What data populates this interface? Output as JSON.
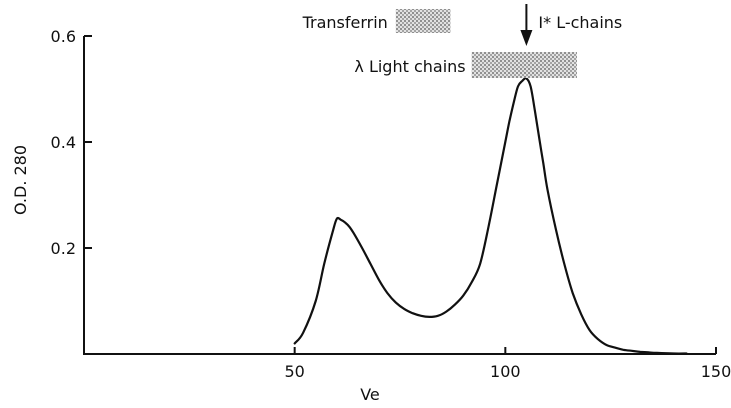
{
  "chart_data": {
    "type": "line",
    "title": "",
    "xlabel": "Ve",
    "ylabel": "O.D. 280",
    "xlim": [
      0,
      150
    ],
    "ylim": [
      0,
      0.6
    ],
    "xticks": [
      50,
      100,
      150
    ],
    "xtick_labels": [
      "50",
      "100",
      "150"
    ],
    "yticks": [
      0.2,
      0.4,
      0.6
    ],
    "ytick_labels": [
      "0.2",
      "0.4",
      "0.6"
    ],
    "grid": false,
    "colors": {
      "line": "#111111",
      "band": "#cfcfcf"
    },
    "series": [
      {
        "x": [
          50,
          52,
          55,
          57,
          59,
          60,
          61,
          62,
          63,
          64,
          66,
          68,
          70,
          72,
          74,
          76,
          78,
          80,
          82,
          84,
          86,
          88,
          90,
          92,
          94,
          96,
          98,
          100,
          101,
          102,
          103,
          104,
          105,
          106,
          107,
          108,
          109,
          110,
          112,
          114,
          116,
          118,
          120,
          122,
          124,
          126,
          128,
          130,
          132,
          134,
          136,
          140,
          143
        ],
        "y": [
          0.02,
          0.04,
          0.1,
          0.17,
          0.23,
          0.255,
          0.253,
          0.248,
          0.24,
          0.228,
          0.2,
          0.17,
          0.14,
          0.115,
          0.097,
          0.085,
          0.077,
          0.072,
          0.07,
          0.072,
          0.08,
          0.093,
          0.11,
          0.135,
          0.17,
          0.24,
          0.32,
          0.4,
          0.44,
          0.475,
          0.505,
          0.515,
          0.52,
          0.505,
          0.46,
          0.41,
          0.36,
          0.31,
          0.235,
          0.17,
          0.115,
          0.075,
          0.045,
          0.028,
          0.017,
          0.012,
          0.008,
          0.006,
          0.004,
          0.003,
          0.002,
          0.001,
          0.001
        ]
      }
    ],
    "annotations": [
      {
        "label": "Transferrin",
        "from": 74,
        "to": 87
      },
      {
        "label": "λ  Light chains",
        "from": 92,
        "to": 117
      },
      {
        "label": "I* L-chains",
        "arrow_at": 105
      }
    ]
  }
}
